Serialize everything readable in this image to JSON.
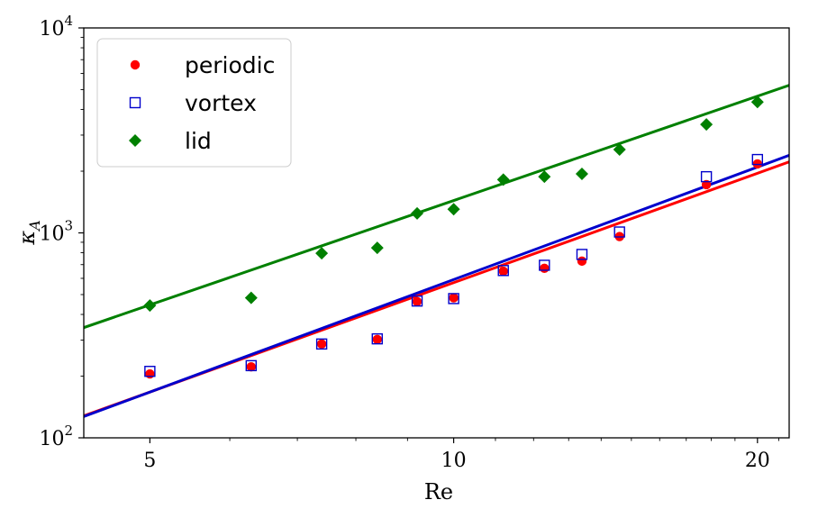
{
  "chart_data": {
    "type": "scatter",
    "xlabel": "Re",
    "ylabel": "κ",
    "ylabel_sub": "A",
    "xscale": "log",
    "yscale": "log",
    "xlim": [
      4.3,
      21.5
    ],
    "ylim": [
      100,
      10000
    ],
    "xticks": [
      {
        "value": 5,
        "label": "5"
      },
      {
        "value": 10,
        "label": "10"
      },
      {
        "value": 20,
        "label": "20"
      }
    ],
    "yticks": [
      {
        "value": 100,
        "base": "10",
        "exp": "2"
      },
      {
        "value": 1000,
        "base": "10",
        "exp": "3"
      },
      {
        "value": 10000,
        "base": "10",
        "exp": "4"
      }
    ],
    "grid": false,
    "legend_position": "top-left",
    "series": [
      {
        "name": "periodic",
        "marker": "circle",
        "color": "#ff0000",
        "x": [
          5,
          6.3,
          7.4,
          8.4,
          9.2,
          10,
          11.2,
          12.3,
          13.4,
          14.6,
          17.8,
          20
        ],
        "y": [
          205,
          222,
          287,
          302,
          462,
          482,
          650,
          672,
          728,
          960,
          1720,
          2170
        ],
        "fit": {
          "x": [
            4.3,
            21.5
          ],
          "y": [
            128,
            2220
          ]
        }
      },
      {
        "name": "vortex",
        "marker": "square",
        "color": "#0000cc",
        "x": [
          5,
          6.3,
          7.4,
          8.4,
          9.2,
          10,
          11.2,
          12.3,
          13.4,
          14.6,
          17.8,
          20
        ],
        "y": [
          211,
          225,
          287,
          304,
          465,
          478,
          655,
          695,
          785,
          1010,
          1880,
          2280
        ],
        "fit": {
          "x": [
            4.3,
            21.5
          ],
          "y": [
            127,
            2390
          ]
        }
      },
      {
        "name": "lid",
        "marker": "diamond",
        "color": "#008000",
        "x": [
          5,
          6.3,
          7.4,
          8.4,
          9.2,
          10,
          11.2,
          12.3,
          13.4,
          14.6,
          17.8,
          20
        ],
        "y": [
          442,
          482,
          795,
          845,
          1245,
          1305,
          1820,
          1880,
          1940,
          2550,
          3380,
          4350
        ],
        "fit": {
          "x": [
            4.3,
            21.5
          ],
          "y": [
            345,
            5250
          ]
        }
      }
    ]
  },
  "colors": {
    "periodic": "#ff0000",
    "vortex": "#0000cc",
    "lid": "#008000"
  }
}
